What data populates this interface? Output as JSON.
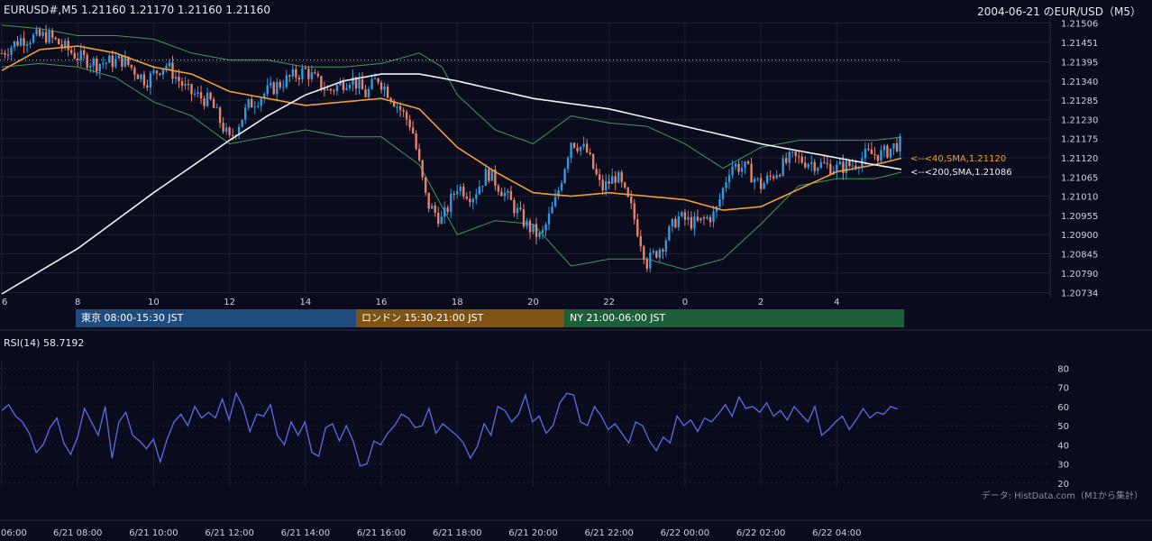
{
  "header": {
    "symbol_info": "EURUSD#,M5 1.21160 1.21170 1.21160 1.21160",
    "chart_title": "2004-06-21 のEUR/USD（M5）"
  },
  "sessions": {
    "tokyo": "東京 08:00-15:30 JST",
    "london": "ロンドン 15:30-21:00 JST",
    "ny": "NY 21:00-06:00 JST"
  },
  "rsi": {
    "label": "RSI(14) 58.7192",
    "levels": [
      "80",
      "70",
      "60",
      "50",
      "40",
      "30",
      "20"
    ]
  },
  "footer": {
    "source_note": "データ: HistData.com（M1から集計）",
    "date_ticks": [
      "06:00",
      "6/21 08:00",
      "6/21 10:00",
      "6/21 12:00",
      "6/21 14:00",
      "6/21 16:00",
      "6/21 18:00",
      "6/21 20:00",
      "6/21 22:00",
      "6/22 00:00",
      "6/22 02:00",
      "6/22 04:00"
    ]
  },
  "colors": {
    "background": "#0a0b1d",
    "grid": "#1c1f33",
    "candle_up": "#2f9be0",
    "candle_down": "#e8826b",
    "sma40": "#f0a030",
    "sma200": "#f2f2f2",
    "bollinger": "#3f9a57",
    "rsi_line": "#5c6ee8",
    "resistance_dotted": "#c9c9c9"
  },
  "chart_data": [
    {
      "type": "candlestick",
      "symbol": "EURUSD#",
      "timeframe": "M5",
      "y_tick_labels": [
        "1.21506",
        "1.21451",
        "1.21395",
        "1.21340",
        "1.21285",
        "1.21230",
        "1.21175",
        "1.21120",
        "1.21065",
        "1.21010",
        "1.20955",
        "1.20900",
        "1.20845",
        "1.20790",
        "1.20734"
      ],
      "ylim": [
        1.2073,
        1.2151
      ],
      "x_tick_labels": [
        "6",
        "8",
        "10",
        "12",
        "14",
        "16",
        "18",
        "20",
        "22",
        "0",
        "2",
        "4"
      ],
      "x_tick_hours": [
        6,
        8,
        10,
        12,
        14,
        16,
        18,
        20,
        22,
        24,
        26,
        28
      ],
      "xlim_hours": [
        6,
        29.75
      ],
      "close_path": [
        [
          6.0,
          1.2142
        ],
        [
          6.5,
          1.2146
        ],
        [
          7.2,
          1.2147
        ],
        [
          8.0,
          1.2141
        ],
        [
          8.5,
          1.2139
        ],
        [
          9.2,
          1.214
        ],
        [
          9.8,
          1.2134
        ],
        [
          10.3,
          1.2139
        ],
        [
          10.9,
          1.2131
        ],
        [
          11.5,
          1.2128
        ],
        [
          12.0,
          1.2117
        ],
        [
          12.5,
          1.2127
        ],
        [
          13.0,
          1.2131
        ],
        [
          13.6,
          1.2135
        ],
        [
          14.0,
          1.2137
        ],
        [
          14.6,
          1.2131
        ],
        [
          15.2,
          1.2135
        ],
        [
          15.6,
          1.213
        ],
        [
          15.9,
          1.2135
        ],
        [
          16.3,
          1.2129
        ],
        [
          16.8,
          1.2121
        ],
        [
          17.2,
          1.2099
        ],
        [
          17.6,
          1.2094
        ],
        [
          18.0,
          1.2104
        ],
        [
          18.4,
          1.2101
        ],
        [
          18.8,
          1.2108
        ],
        [
          19.3,
          1.2101
        ],
        [
          19.8,
          1.2093
        ],
        [
          20.2,
          1.2089
        ],
        [
          20.6,
          1.21
        ],
        [
          21.0,
          1.2117
        ],
        [
          21.4,
          1.2114
        ],
        [
          21.8,
          1.2103
        ],
        [
          22.2,
          1.2107
        ],
        [
          22.6,
          1.2097
        ],
        [
          23.0,
          1.2082
        ],
        [
          23.4,
          1.2087
        ],
        [
          23.8,
          1.2095
        ],
        [
          24.3,
          1.2093
        ],
        [
          24.8,
          1.2096
        ],
        [
          25.2,
          1.211
        ],
        [
          25.6,
          1.2109
        ],
        [
          26.0,
          1.2104
        ],
        [
          26.4,
          1.2108
        ],
        [
          26.8,
          1.2112
        ],
        [
          27.2,
          1.2111
        ],
        [
          27.6,
          1.211
        ],
        [
          28.0,
          1.2109
        ],
        [
          28.4,
          1.211
        ],
        [
          28.8,
          1.2113
        ],
        [
          29.2,
          1.2113
        ],
        [
          29.6,
          1.2116
        ]
      ],
      "last_close": 1.2116,
      "dotted_level": 1.214,
      "series": [
        {
          "name": "40,SMA",
          "label": "<--<40,SMA,1.21120",
          "last": 1.2112,
          "path": [
            [
              6.0,
              1.2137
            ],
            [
              7.0,
              1.2143
            ],
            [
              8.0,
              1.2144
            ],
            [
              9.0,
              1.2142
            ],
            [
              10.0,
              1.2138
            ],
            [
              11.0,
              1.2136
            ],
            [
              12.0,
              1.2131
            ],
            [
              13.0,
              1.2129
            ],
            [
              14.0,
              1.2127
            ],
            [
              15.0,
              1.2128
            ],
            [
              16.0,
              1.2129
            ],
            [
              17.0,
              1.2126
            ],
            [
              18.0,
              1.2115
            ],
            [
              19.0,
              1.2108
            ],
            [
              20.0,
              1.2102
            ],
            [
              21.0,
              1.2101
            ],
            [
              22.0,
              1.2102
            ],
            [
              23.0,
              1.2101
            ],
            [
              24.0,
              1.21
            ],
            [
              25.0,
              1.2097
            ],
            [
              26.0,
              1.2098
            ],
            [
              27.0,
              1.2103
            ],
            [
              28.0,
              1.2108
            ],
            [
              29.0,
              1.211
            ],
            [
              29.75,
              1.2112
            ]
          ]
        },
        {
          "name": "200,SMA",
          "label": "<--<200,SMA,1.21086",
          "last": 1.21086,
          "path": [
            [
              6.0,
              1.2073
            ],
            [
              8.0,
              1.2086
            ],
            [
              10.0,
              1.2102
            ],
            [
              12.0,
              1.2117
            ],
            [
              13.0,
              1.2124
            ],
            [
              14.0,
              1.213
            ],
            [
              15.0,
              1.2134
            ],
            [
              16.0,
              1.2136
            ],
            [
              17.0,
              1.2136
            ],
            [
              18.0,
              1.2134
            ],
            [
              20.0,
              1.2129
            ],
            [
              22.0,
              1.2126
            ],
            [
              24.0,
              1.2121
            ],
            [
              26.0,
              1.2116
            ],
            [
              27.0,
              1.2114
            ],
            [
              28.0,
              1.2112
            ],
            [
              29.0,
              1.211
            ],
            [
              29.75,
              1.21086
            ]
          ]
        }
      ],
      "bollinger_bands": {
        "upper": [
          [
            6.0,
            1.215
          ],
          [
            7.0,
            1.2149
          ],
          [
            8.0,
            1.2147
          ],
          [
            9.0,
            1.2147
          ],
          [
            10.0,
            1.2146
          ],
          [
            11.0,
            1.2142
          ],
          [
            12.0,
            1.214
          ],
          [
            13.0,
            1.214
          ],
          [
            14.0,
            1.2138
          ],
          [
            15.0,
            1.2138
          ],
          [
            16.0,
            1.2139
          ],
          [
            17.0,
            1.2142
          ],
          [
            17.6,
            1.2138
          ],
          [
            18.0,
            1.213
          ],
          [
            19.0,
            1.212
          ],
          [
            20.0,
            1.2116
          ],
          [
            21.0,
            1.2124
          ],
          [
            22.0,
            1.2122
          ],
          [
            23.0,
            1.2121
          ],
          [
            24.0,
            1.2116
          ],
          [
            25.0,
            1.2109
          ],
          [
            26.0,
            1.2115
          ],
          [
            27.0,
            1.2117
          ],
          [
            28.0,
            1.2117
          ],
          [
            29.0,
            1.2117
          ],
          [
            29.75,
            1.2118
          ]
        ],
        "lower": [
          [
            6.0,
            1.2138
          ],
          [
            7.0,
            1.2139
          ],
          [
            8.0,
            1.2138
          ],
          [
            9.0,
            1.2135
          ],
          [
            10.0,
            1.2128
          ],
          [
            11.0,
            1.2124
          ],
          [
            12.0,
            1.2116
          ],
          [
            13.0,
            1.2118
          ],
          [
            14.0,
            1.212
          ],
          [
            15.0,
            1.2118
          ],
          [
            16.0,
            1.2118
          ],
          [
            17.0,
            1.211
          ],
          [
            18.0,
            1.209
          ],
          [
            19.0,
            1.2094
          ],
          [
            20.0,
            1.2093
          ],
          [
            21.0,
            1.2081
          ],
          [
            22.0,
            1.2083
          ],
          [
            23.0,
            1.2083
          ],
          [
            24.0,
            1.208
          ],
          [
            25.0,
            1.2083
          ],
          [
            26.0,
            1.2093
          ],
          [
            27.0,
            1.2104
          ],
          [
            28.0,
            1.2106
          ],
          [
            29.0,
            1.2106
          ],
          [
            29.75,
            1.2108
          ]
        ]
      }
    },
    {
      "type": "line",
      "title": "RSI(14) 58.7192",
      "last": 58.7192,
      "y_ticks": [
        80,
        70,
        60,
        50,
        40,
        30,
        20
      ],
      "ylim": [
        18,
        84
      ],
      "values": [
        58,
        61,
        55,
        52,
        46,
        36,
        40,
        49,
        54,
        41,
        35,
        44,
        59,
        52,
        45,
        60,
        33,
        52,
        57,
        45,
        42,
        38,
        43,
        31,
        43,
        52,
        56,
        50,
        60,
        54,
        57,
        54,
        64,
        53,
        67,
        60,
        47,
        56,
        55,
        61,
        45,
        40,
        52,
        45,
        52,
        36,
        34,
        49,
        51,
        42,
        50,
        42,
        29,
        30,
        42,
        40,
        46,
        50,
        56,
        54,
        49,
        50,
        59,
        46,
        51,
        48,
        45,
        41,
        33,
        39,
        51,
        45,
        60,
        58,
        52,
        56,
        66,
        52,
        55,
        46,
        50,
        62,
        67,
        66,
        52,
        50,
        60,
        55,
        48,
        51,
        46,
        41,
        52,
        50,
        42,
        37,
        44,
        41,
        55,
        50,
        53,
        47,
        54,
        52,
        56,
        61,
        55,
        65,
        59,
        60,
        57,
        62,
        55,
        58,
        53,
        60,
        56,
        52,
        60,
        45,
        48,
        52,
        55,
        48,
        53,
        59,
        54,
        57,
        56,
        60,
        58.7192
      ]
    }
  ]
}
